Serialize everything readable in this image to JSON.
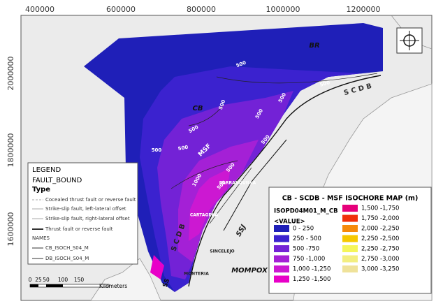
{
  "header": {
    "x_labels": [
      "400000",
      "600000",
      "800000",
      "1000000",
      "1200000"
    ],
    "y_labels": [
      "2000000",
      "1800000",
      "1600000"
    ]
  },
  "map_labels": [
    "BR",
    "CB",
    "MSF",
    "S C D B",
    "S C D B",
    "BARRANQUILLA",
    "CARTAGENA",
    "SSJ",
    "SINCELEJO",
    "MONTERIA",
    "MOMPOX",
    "SS"
  ],
  "contour_labels": [
    "500",
    "500",
    "500",
    "500",
    "500",
    "500",
    "500",
    "500",
    "500",
    "500",
    "500",
    "1000"
  ],
  "legend_faults": {
    "title": "LEGEND",
    "field": "FAULT_BOUND",
    "type": "Type",
    "items": [
      "Cocealed thrust fault or reverse fault",
      "Strike-slip fault, left-lateral offset",
      "Strike-slip fault, right-lateral offset",
      "Thrust fault or reverse fault",
      "NAMES",
      "CB_ISOCH_S04_M",
      "DB_ISOCH_S04_M"
    ]
  },
  "legend_isochore": {
    "title": "CB - SCDB - MSF ISOCHORE MAP (m)",
    "field": "ISOPD04M01_M_CB",
    "value_heading": "<VALUE>",
    "classes": [
      {
        "label": "0 - 250",
        "color": "#1f1fb8"
      },
      {
        "label": "250 - 500",
        "color": "#3b22cf"
      },
      {
        "label": "500 -750",
        "color": "#7322d6"
      },
      {
        "label": "750 -1,000",
        "color": "#a420d6"
      },
      {
        "label": "1,000 -1,250",
        "color": "#cc18d2"
      },
      {
        "label": "1,250 -1,500",
        "color": "#e800c8"
      },
      {
        "label": "1,500 -1,750",
        "color": "#e6007a"
      },
      {
        "label": "1,750 -2,000",
        "color": "#f0300a"
      },
      {
        "label": "2,000 -2,250",
        "color": "#f58a0a"
      },
      {
        "label": "2,250 -2,500",
        "color": "#f5c800"
      },
      {
        "label": "2,250 -2,750",
        "color": "#f5f55a"
      },
      {
        "label": "2,750 -3,000",
        "color": "#f3ee80"
      },
      {
        "label": "3,000 -3,250",
        "color": "#efe29a"
      }
    ]
  },
  "scale_bar": {
    "ticks": [
      "0",
      "25",
      "50",
      "100",
      "150"
    ],
    "unit": "Kilometers"
  }
}
